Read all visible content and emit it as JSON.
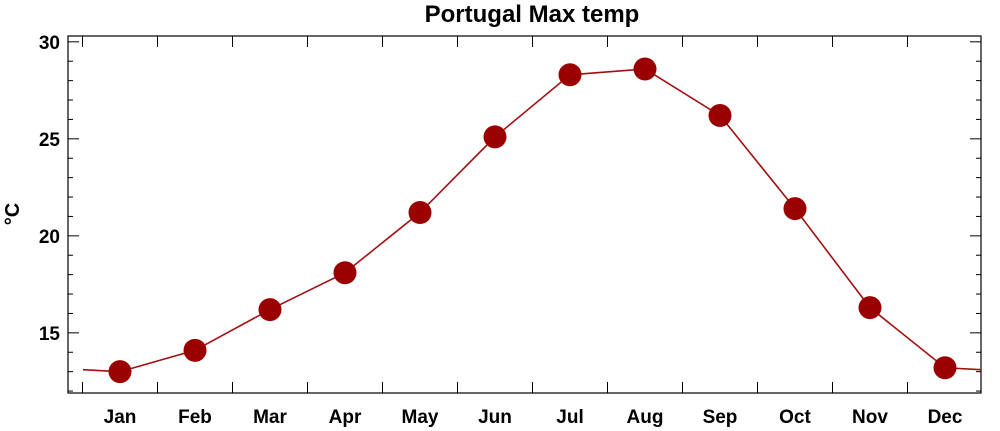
{
  "chart_data": {
    "type": "line",
    "title": "Portugal Max temp",
    "xlabel": "",
    "ylabel": "°C",
    "categories": [
      "Jan",
      "Feb",
      "Mar",
      "Apr",
      "May",
      "Jun",
      "Jul",
      "Aug",
      "Sep",
      "Oct",
      "Nov",
      "Dec"
    ],
    "values": [
      13.0,
      14.1,
      16.2,
      18.1,
      21.2,
      25.1,
      28.3,
      28.6,
      26.2,
      21.4,
      16.3,
      13.2
    ],
    "line_extension": {
      "left_value": 13.1,
      "right_value": 13.1
    },
    "ylim": [
      11.9,
      30.3
    ],
    "yticks": [
      15,
      20,
      25,
      30
    ],
    "ytick_labels": [
      "15",
      "20",
      "25",
      "30"
    ],
    "grid": false,
    "colors": {
      "line": "#a01010",
      "marker": "#9b0000",
      "axis": "#000000"
    }
  }
}
